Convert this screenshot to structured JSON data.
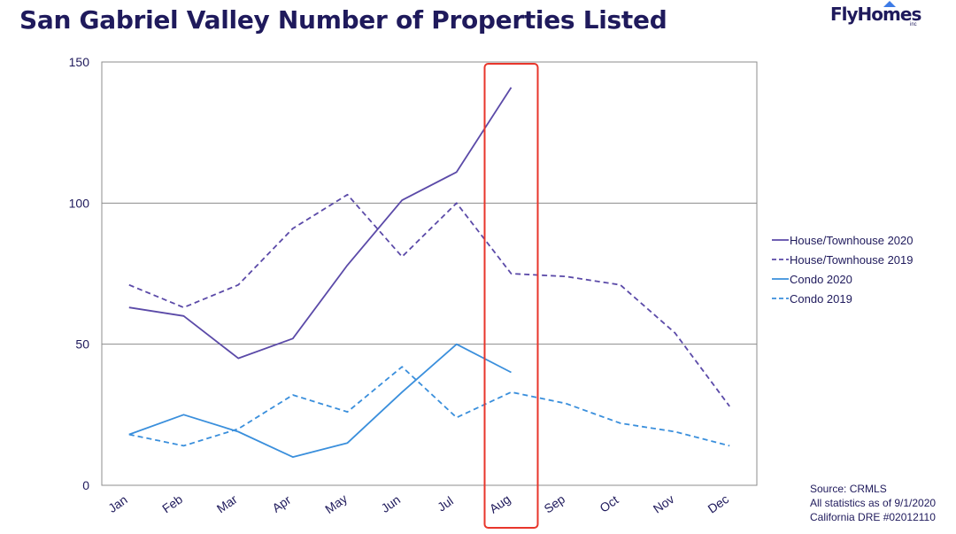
{
  "header": {
    "title": "San Gabriel Valley Number of Properties Listed",
    "logo_text": "FlyHomes",
    "logo_sub": "inc"
  },
  "footer": {
    "source": "Source: CRMLS",
    "as_of": "All statistics as of 9/1/2020",
    "dre": "California DRE #02012110"
  },
  "chart_data": {
    "type": "line",
    "title": "San Gabriel Valley Number of Properties Listed",
    "xlabel": "",
    "ylabel": "",
    "categories": [
      "Jan",
      "Feb",
      "Mar",
      "Apr",
      "May",
      "Jun",
      "Jul",
      "Aug",
      "Sep",
      "Oct",
      "Nov",
      "Dec"
    ],
    "ylim": [
      0,
      150
    ],
    "yticks": [
      0,
      50,
      100,
      150
    ],
    "grid": true,
    "legend_position": "right",
    "highlight": {
      "category": "Aug",
      "color": "#e8362b"
    },
    "series": [
      {
        "name": "House/Townhouse 2020",
        "color": "#5b4aa8",
        "dashed": false,
        "values": [
          63,
          60,
          45,
          52,
          78,
          101,
          111,
          141,
          null,
          null,
          null,
          null
        ]
      },
      {
        "name": "House/Townhouse 2019",
        "color": "#5b4aa8",
        "dashed": true,
        "values": [
          71,
          63,
          71,
          91,
          103,
          81,
          100,
          75,
          74,
          71,
          54,
          28
        ]
      },
      {
        "name": "Condo 2020",
        "color": "#3a8fdc",
        "dashed": false,
        "values": [
          18,
          25,
          19,
          10,
          15,
          33,
          50,
          40,
          null,
          null,
          null,
          null
        ]
      },
      {
        "name": "Condo 2019",
        "color": "#3a8fdc",
        "dashed": true,
        "values": [
          18,
          14,
          20,
          32,
          26,
          42,
          24,
          33,
          29,
          22,
          19,
          14
        ]
      }
    ]
  }
}
